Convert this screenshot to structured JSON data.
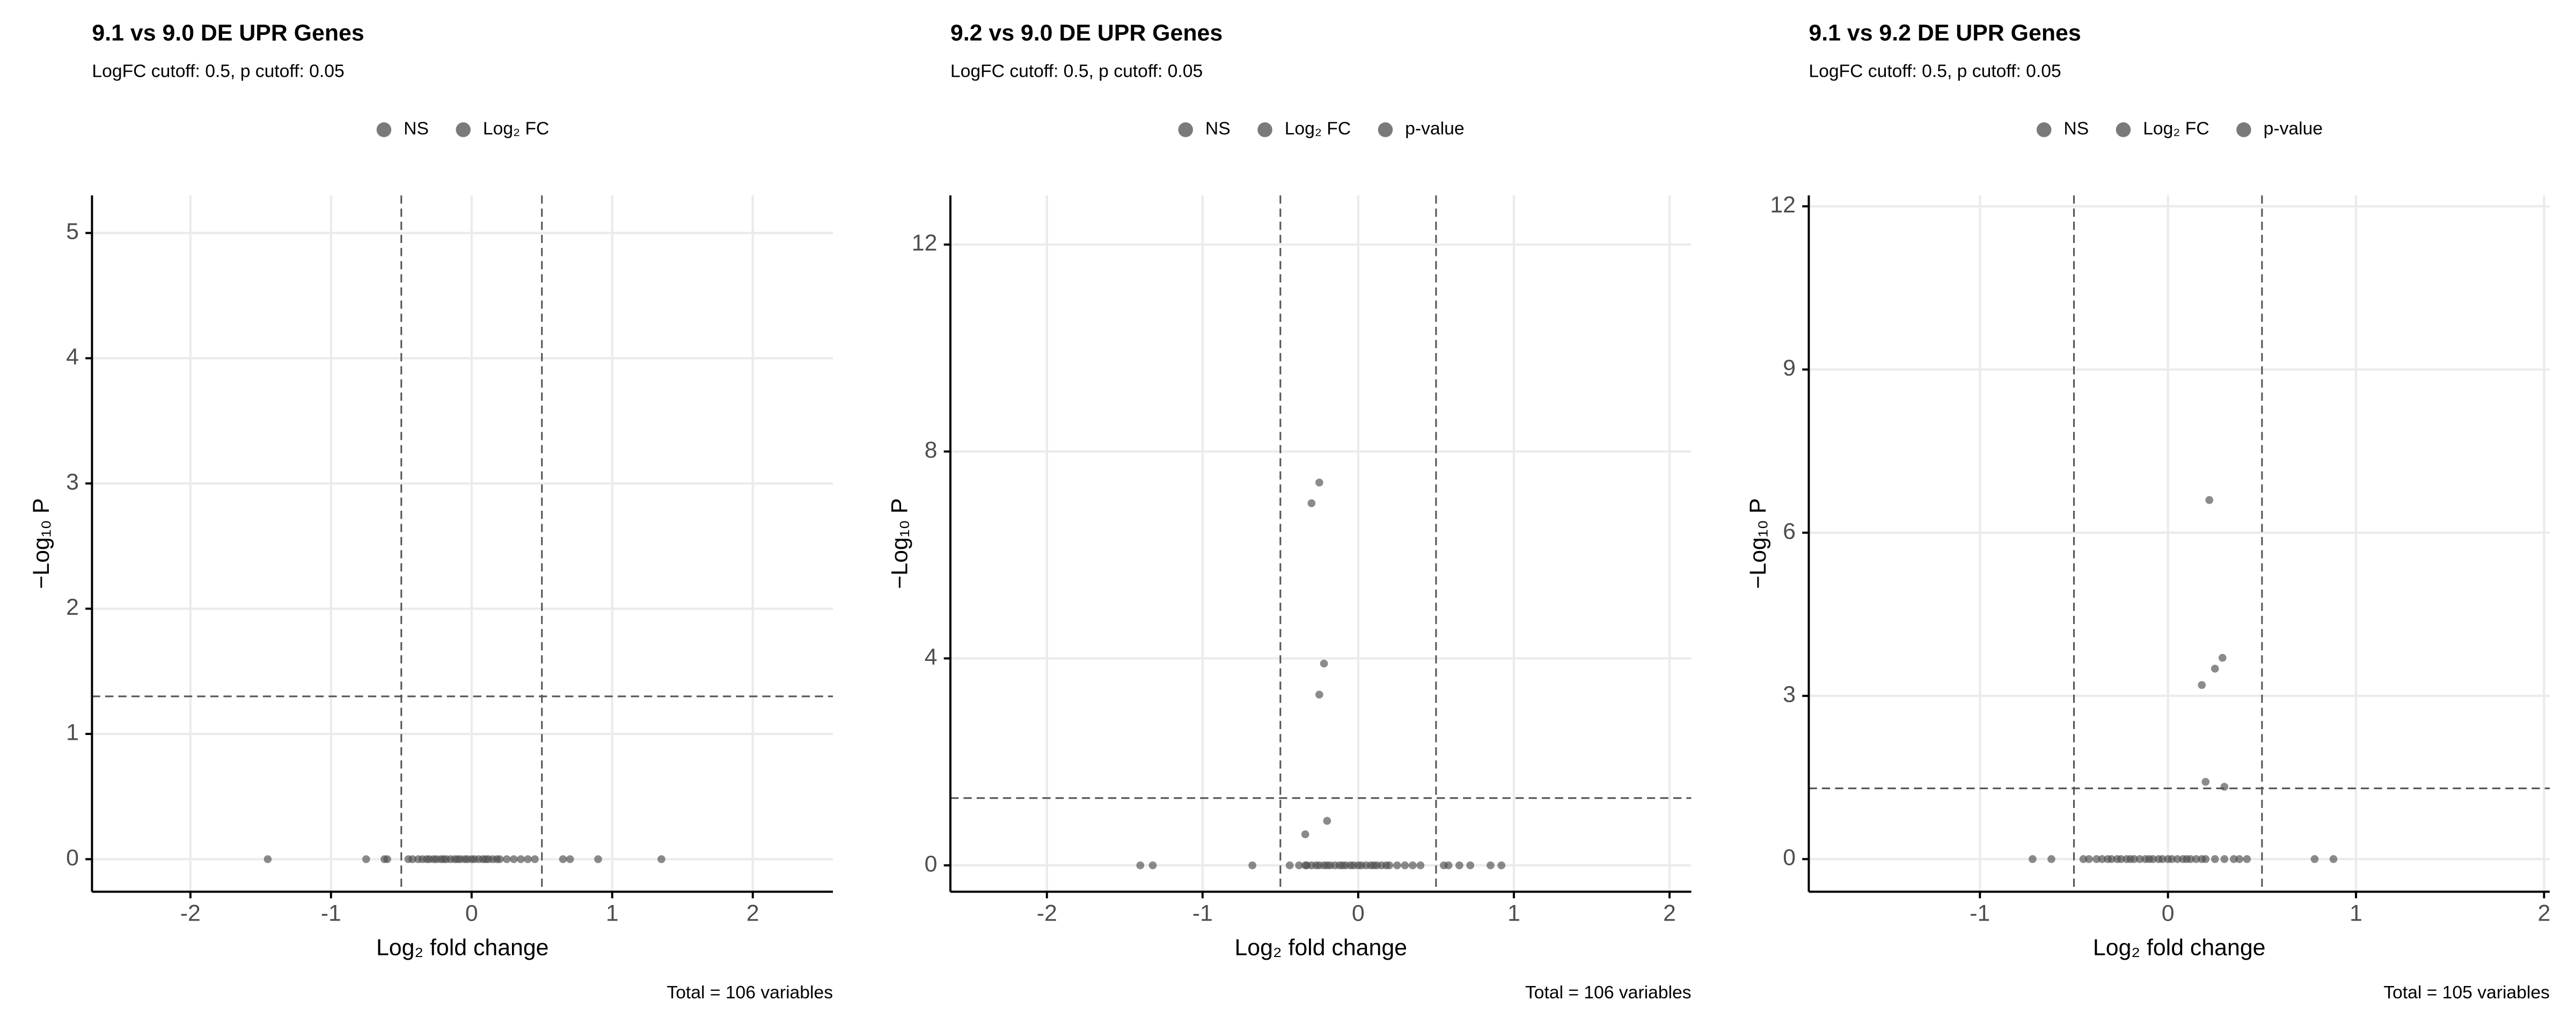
{
  "chart_data": [
    {
      "type": "scatter",
      "title": "9.1 vs 9.0 DE UPR Genes",
      "subtitle": "LogFC cutoff: 0.5, p cutoff: 0.05",
      "x_label": "Log₂ fold change",
      "y_label": "−Log₁₀ P",
      "caption": "Total = 106 variables",
      "xlim": [
        -2.7,
        2.57
      ],
      "ylim": [
        -0.26,
        5.3
      ],
      "xticks": [
        -2,
        -1,
        0,
        1,
        2
      ],
      "yticks": [
        0,
        1,
        2,
        3,
        4,
        5
      ],
      "vlines": [
        -0.5,
        0.5
      ],
      "hline": 1.3,
      "grid": true,
      "series": [
        {
          "name": "NS",
          "color": "#4d4d4d",
          "x": [
            -0.45,
            -0.42,
            -0.38,
            -0.35,
            -0.32,
            -0.3,
            -0.27,
            -0.25,
            -0.22,
            -0.2,
            -0.18,
            -0.15,
            -0.12,
            -0.1,
            -0.08,
            -0.05,
            -0.03,
            0,
            0.02,
            0.05,
            0.08,
            0.1,
            0.12,
            0.15,
            0.18,
            0.2,
            0.25,
            0.3,
            0.35,
            0.4,
            0.45
          ],
          "values": [
            0,
            0,
            0,
            0,
            0,
            0,
            0,
            0,
            0,
            0,
            0,
            0,
            0,
            0,
            0,
            0,
            0,
            0,
            0,
            0,
            0,
            0,
            0,
            0,
            0,
            0,
            0,
            0,
            0,
            0,
            0
          ]
        },
        {
          "name": "Log₂ FC",
          "color": "#4d4d4d",
          "x": [
            -1.45,
            -0.75,
            -0.62,
            -0.6,
            0.65,
            0.7,
            0.9,
            1.35
          ],
          "values": [
            0,
            0,
            0,
            0,
            0,
            0,
            0,
            0
          ]
        }
      ]
    },
    {
      "type": "scatter",
      "title": "9.2 vs 9.0 DE UPR Genes",
      "subtitle": "LogFC cutoff: 0.5, p cutoff: 0.05",
      "x_label": "Log₂ fold change",
      "y_label": "−Log₁₀ P",
      "caption": "Total = 106 variables",
      "xlim": [
        -2.62,
        2.14
      ],
      "ylim": [
        -0.51,
        12.95
      ],
      "xticks": [
        -2,
        -1,
        0,
        1,
        2
      ],
      "yticks": [
        0,
        4,
        8,
        12
      ],
      "vlines": [
        -0.5,
        0.5
      ],
      "hline": 1.3,
      "grid": true,
      "series": [
        {
          "name": "NS",
          "color": "#4d4d4d",
          "x": [
            -0.44,
            -0.38,
            -0.34,
            -0.33,
            -0.3,
            -0.27,
            -0.25,
            -0.22,
            -0.2,
            -0.18,
            -0.15,
            -0.12,
            -0.1,
            -0.08,
            -0.05,
            -0.03,
            0,
            0.02,
            0.05,
            0.08,
            0.1,
            0.12,
            0.15,
            0.18,
            0.2,
            0.25,
            0.3,
            0.35,
            0.4,
            -0.34,
            -0.2
          ],
          "values": [
            0,
            0,
            0,
            0,
            0,
            0,
            0,
            0,
            0,
            0,
            0,
            0,
            0,
            0,
            0,
            0,
            0,
            0,
            0,
            0,
            0,
            0,
            0,
            0,
            0,
            0,
            0,
            0,
            0,
            0.6,
            0.86
          ]
        },
        {
          "name": "Log₂ FC",
          "color": "#4d4d4d",
          "x": [
            -1.4,
            -1.32,
            -0.68,
            0.55,
            0.58,
            0.65,
            0.72,
            0.85,
            0.92
          ],
          "values": [
            0,
            0,
            0,
            0,
            0,
            0,
            0,
            0,
            0
          ]
        },
        {
          "name": "p-value",
          "color": "#4d4d4d",
          "x": [
            -0.3,
            -0.25,
            -0.22,
            -0.25
          ],
          "values": [
            7.0,
            7.4,
            3.9,
            3.3
          ]
        }
      ]
    },
    {
      "type": "scatter",
      "title": "9.1 vs 9.2 DE UPR Genes",
      "subtitle": "LogFC cutoff: 0.5, p cutoff: 0.05",
      "x_label": "Log₂ fold change",
      "y_label": "−Log₁₀ P",
      "caption": "Total = 105 variables",
      "xlim": [
        -1.91,
        2.03
      ],
      "ylim": [
        -0.6,
        12.2
      ],
      "xticks": [
        -1,
        0,
        1,
        2
      ],
      "yticks": [
        0,
        3,
        6,
        9,
        12
      ],
      "vlines": [
        -0.5,
        0.5
      ],
      "hline": 1.3,
      "grid": true,
      "series": [
        {
          "name": "NS",
          "color": "#4d4d4d",
          "x": [
            -0.45,
            -0.42,
            -0.38,
            -0.35,
            -0.32,
            -0.3,
            -0.27,
            -0.25,
            -0.22,
            -0.2,
            -0.18,
            -0.15,
            -0.12,
            -0.1,
            -0.08,
            -0.05,
            -0.03,
            0,
            0.02,
            0.05,
            0.08,
            0.1,
            0.12,
            0.15,
            0.18,
            0.2,
            0.25,
            0.3,
            0.35,
            0.38,
            0.42
          ],
          "values": [
            0,
            0,
            0,
            0,
            0,
            0,
            0,
            0,
            0,
            0,
            0,
            0,
            0,
            0,
            0,
            0,
            0,
            0,
            0,
            0,
            0,
            0,
            0,
            0,
            0,
            0,
            0,
            0,
            0,
            0,
            0
          ]
        },
        {
          "name": "Log₂ FC",
          "color": "#4d4d4d",
          "x": [
            -0.72,
            -0.62,
            0.78,
            0.88
          ],
          "values": [
            0,
            0,
            0,
            0
          ]
        },
        {
          "name": "p-value",
          "color": "#4d4d4d",
          "x": [
            0.22,
            0.29,
            0.25,
            0.18,
            0.2,
            0.3
          ],
          "values": [
            6.6,
            3.7,
            3.5,
            3.2,
            1.42,
            1.33
          ]
        }
      ]
    }
  ]
}
